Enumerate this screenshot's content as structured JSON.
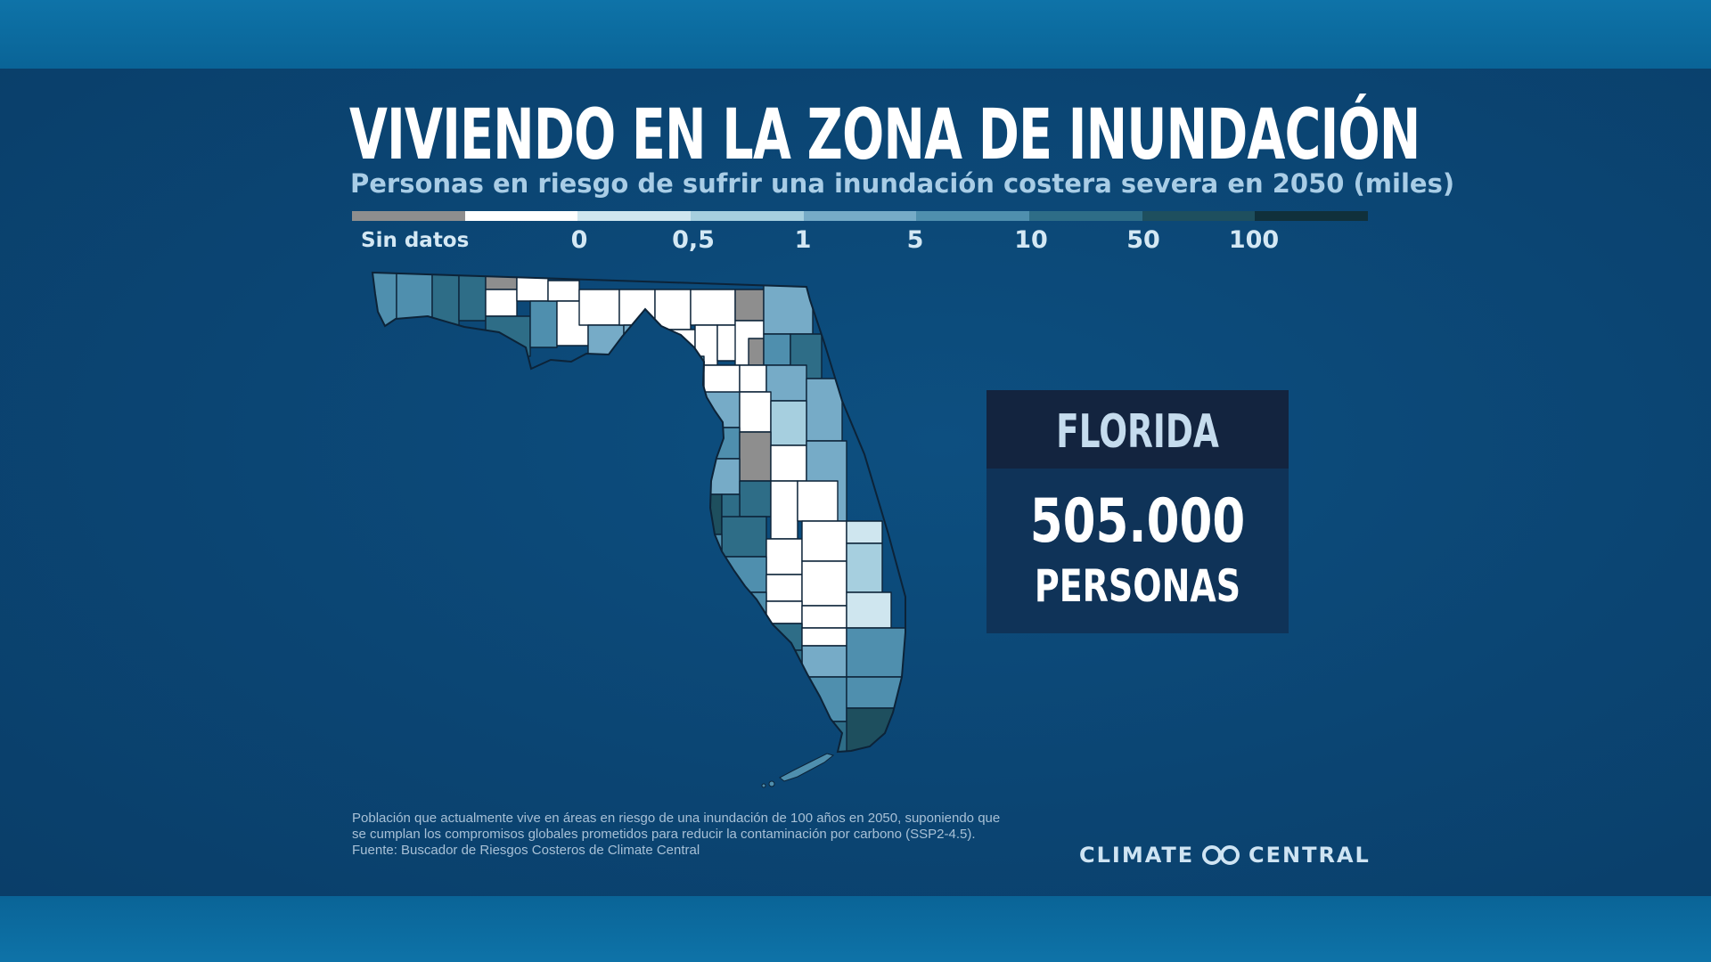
{
  "title": "VIVIENDO EN LA ZONA DE INUNDACIÓN",
  "subtitle": "Personas en riesgo de sufrir una inundación costera severa en 2050 (miles)",
  "legend": {
    "no_data_label": "Sin datos",
    "segments": [
      {
        "label": "Sin datos",
        "color": "#8e8e8e"
      },
      {
        "label": "0",
        "color": "#ffffff"
      },
      {
        "label": "0,5",
        "color": "#cfe6ef"
      },
      {
        "label": "1",
        "color": "#a6cfdf"
      },
      {
        "label": "5",
        "color": "#76abc7"
      },
      {
        "label": "10",
        "color": "#4f8fae"
      },
      {
        "label": "50",
        "color": "#2e6d87"
      },
      {
        "label": "100",
        "color": "#1e4f5e"
      },
      {
        "label": "",
        "color": "#10303b"
      }
    ],
    "tick_labels": [
      "0",
      "0,5",
      "1",
      "5",
      "10",
      "50",
      "100"
    ]
  },
  "card": {
    "state": "FLORIDA",
    "value": "505.000",
    "unit": "PERSONAS"
  },
  "footnote": {
    "line1": "Población que actualmente vive en áreas en riesgo de una inundación de 100 años en 2050, suponiendo que",
    "line2": "se cumplan los compromisos globales prometidos para reducir la contaminación por carbono (SSP2-4.5).",
    "line3": "Fuente: Buscador de Riesgos Costeros de Climate Central"
  },
  "brand": {
    "word1": "CLIMATE",
    "word2": "CENTRAL",
    "logo_icon": "linked-rings-icon"
  },
  "colors": {
    "background": "#0b4573",
    "frame_band": "#0b6b9f",
    "card_header": "#13243f",
    "card_body": "#0f3358"
  }
}
